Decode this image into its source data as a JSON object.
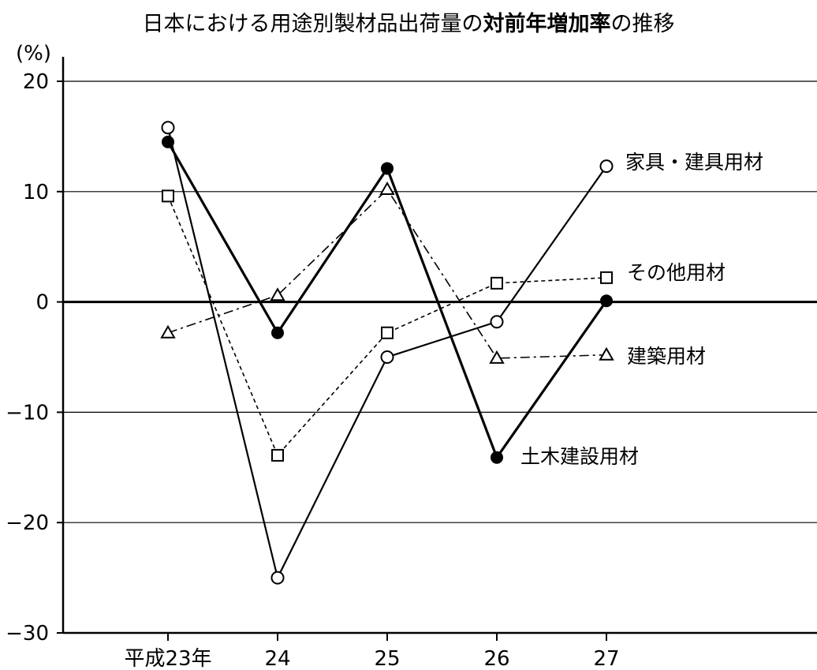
{
  "chart_data": {
    "type": "line",
    "title_parts": {
      "pre": "日本における用途別製材品出荷量の",
      "bold": "対前年増加率",
      "post": "の推移"
    },
    "y_unit": "(%)",
    "categories": [
      "平成23年",
      "24",
      "25",
      "26",
      "27"
    ],
    "ylim": [
      -30,
      20
    ],
    "yticks": [
      20,
      10,
      0,
      -10,
      -20,
      -30
    ],
    "ytick_labels": [
      "20",
      "10",
      "0",
      "−10",
      "−20",
      "−30"
    ],
    "grid": true,
    "series": [
      {
        "name": "家具・建具用材",
        "marker": "open-circle",
        "line": "solid",
        "values": [
          15.8,
          -25.0,
          -5.0,
          -1.8,
          12.3
        ]
      },
      {
        "name": "その他用材",
        "marker": "open-square",
        "line": "dashed",
        "values": [
          9.6,
          -13.9,
          -2.8,
          1.7,
          2.2
        ]
      },
      {
        "name": "建築用材",
        "marker": "open-triangle",
        "line": "dash-dot",
        "values": [
          -2.8,
          0.6,
          10.2,
          -5.1,
          -4.8
        ]
      },
      {
        "name": "土木建設用材",
        "marker": "filled-circle",
        "line": "solid-thick",
        "values": [
          14.5,
          -2.8,
          12.1,
          -14.1,
          0.1
        ]
      }
    ]
  }
}
